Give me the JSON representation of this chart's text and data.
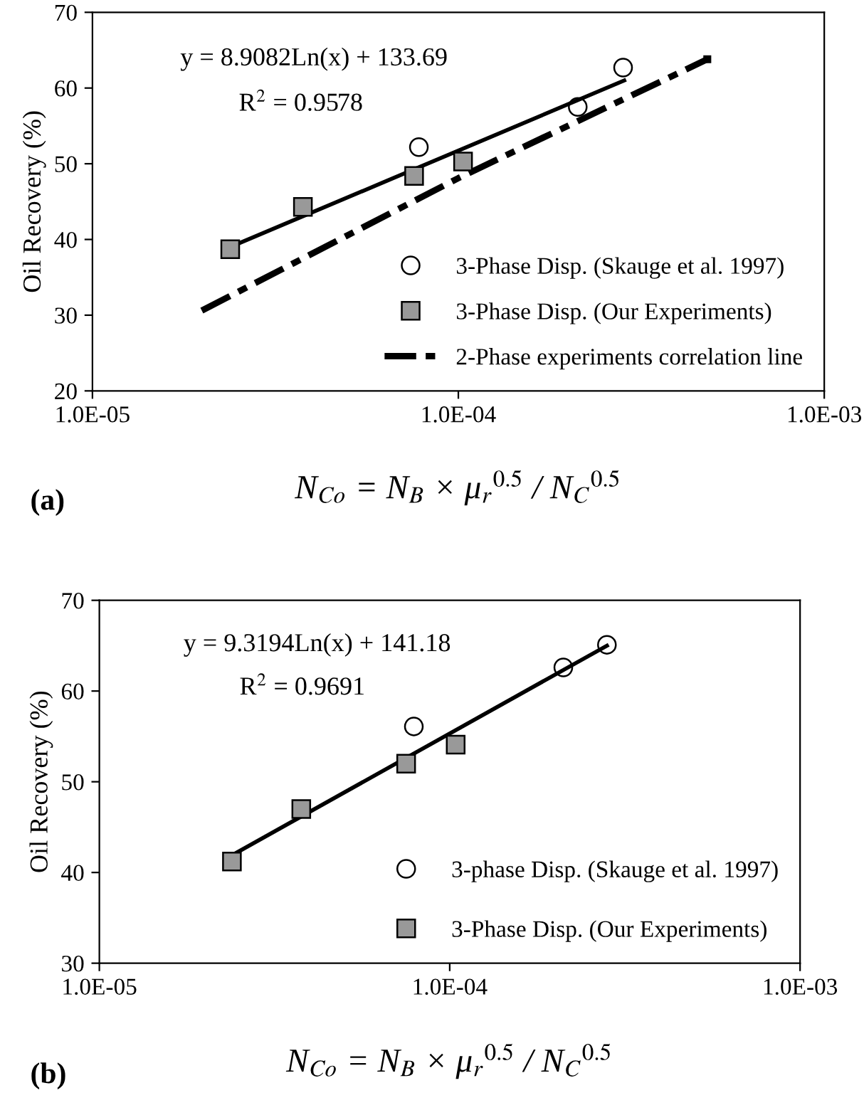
{
  "chart_data": [
    {
      "type": "scatter",
      "ylabel": "Oil Recovery (%)",
      "xlabel": "N$_{Co}$ = N$_{B}$ × μ$_{r}$$^{0.5}$ / N$_{C}$$^{0.5}$",
      "log": "x",
      "xlim": [
        1e-05,
        0.001
      ],
      "xticks": [
        {
          "value": 1e-05,
          "label": "1.0E-05"
        },
        {
          "value": 0.0001,
          "label": "1.0E-04"
        },
        {
          "value": 0.001,
          "label": "1.0E-03"
        }
      ],
      "ylim": [
        20,
        70
      ],
      "yticks": [
        20,
        30,
        40,
        50,
        60,
        70
      ],
      "grid": false,
      "legend": "bottom right",
      "annotations": [
        "y = 8.9082Ln(x) + 133.69",
        "R$^{2}$ = 0.9578",
        "(a)"
      ],
      "series": [
        {
          "type": "line",
          "color": "#000000",
          "line_style": "solid",
          "marker": "none",
          "x": [
            2.38e-05,
            0.000284
          ],
          "values": [
            39.0,
            61.0
          ]
        },
        {
          "type": "line",
          "name": "2-Phase experiments correlation line",
          "color": "#000000",
          "line_style": "dashed",
          "marker": "none",
          "x": [
            1.99e-05,
            0.0001,
            0.000479
          ],
          "values": [
            30.6,
            48.1,
            63.8
          ]
        },
        {
          "name": "3-Phase Disp. (Skauge et al. 1997)",
          "color": "#000000",
          "marker": "circle",
          "x": [
            7.8e-05,
            0.000212,
            0.000282
          ],
          "values": [
            52.2,
            57.5,
            62.7
          ]
        },
        {
          "name": "3-Phase Disp. (Our Experiments)",
          "color": "#999999",
          "marker": "square",
          "x": [
            2.38e-05,
            3.76e-05,
            7.57e-05,
            0.000103
          ],
          "values": [
            38.7,
            44.3,
            48.4,
            50.3
          ]
        }
      ]
    },
    {
      "type": "scatter",
      "ylabel": "Oil Recovery (%)",
      "xlabel": "N$_{Co}$ = N$_{B}$ × μ$_{r}$$^{0.5}$ / N$_{C}$$^{0.5}$",
      "log": "x",
      "xlim": [
        1e-05,
        0.001
      ],
      "xticks": [
        {
          "value": 1e-05,
          "label": "1.0E-05"
        },
        {
          "value": 0.0001,
          "label": "1.0E-04"
        },
        {
          "value": 0.001,
          "label": "1.0E-03"
        }
      ],
      "ylim": [
        30,
        70
      ],
      "yticks": [
        30,
        40,
        50,
        60,
        70
      ],
      "grid": false,
      "legend": "bottom right",
      "annotations": [
        "y = 9.3194Ln(x) + 141.18",
        "R$^{2}$ = 0.9691",
        "(b)"
      ],
      "series": [
        {
          "type": "line",
          "color": "#000000",
          "line_style": "solid",
          "marker": "none",
          "x": [
            2.39e-05,
            0.000281
          ],
          "values": [
            41.9,
            65.0
          ]
        },
        {
          "name": "3-phase Disp. (Skauge et al. 1997)",
          "color": "#000000",
          "marker": "circle",
          "x": [
            7.9e-05,
            0.000211,
            0.000281
          ],
          "values": [
            56.1,
            62.6,
            65.1
          ]
        },
        {
          "name": "3-Phase Disp. (Our Experiments)",
          "color": "#999999",
          "marker": "square",
          "x": [
            2.39e-05,
            3.77e-05,
            7.51e-05,
            0.000104
          ],
          "values": [
            41.2,
            47.0,
            52.0,
            54.1
          ]
        }
      ]
    }
  ]
}
